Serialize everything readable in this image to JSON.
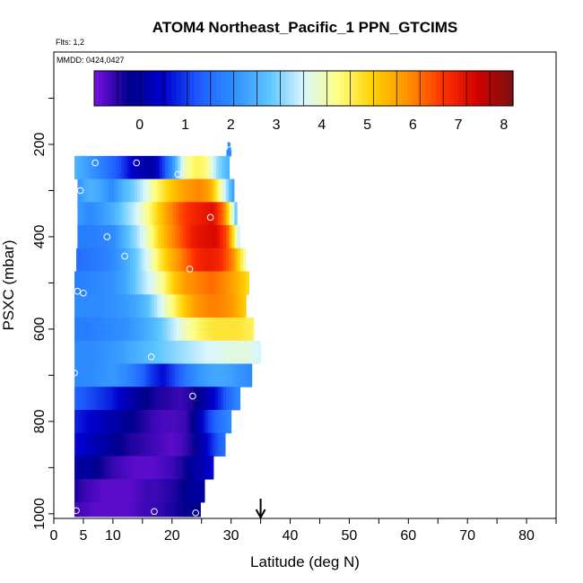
{
  "chart_data": {
    "type": "heatmap",
    "title": "ATOM4 Northeast_Pacific_1 PPN_GTCIMS",
    "flights_note": "Flts: 1,2",
    "dates_note": "MMDD: 0424,0427",
    "xlabel": "Latitude (deg N)",
    "ylabel": "PSXC (mbar)",
    "xlim": [
      0,
      85
    ],
    "ylim": [
      1010,
      0
    ],
    "x_ticks": [
      0,
      5,
      10,
      20,
      30,
      40,
      50,
      60,
      70,
      80
    ],
    "y_ticks": [
      200,
      400,
      600,
      800,
      1000
    ],
    "colorbar": {
      "min": -1,
      "max": 8.2,
      "ticks": [
        0,
        1,
        2,
        3,
        4,
        5,
        6,
        7,
        8
      ],
      "colors": [
        "#7a10e0",
        "#00008b",
        "#0000cd",
        "#1e5cff",
        "#2f8fff",
        "#5cc4ff",
        "#d8f6ff",
        "#ffff80",
        "#ffd000",
        "#ff9000",
        "#ff3000",
        "#d00000",
        "#7a1010"
      ]
    },
    "arrow_x": 35,
    "rows": [
      {
        "p": 200,
        "x0": 29.4,
        "x1": 29.9,
        "vals": [
          2.0
        ]
      },
      {
        "p": 225,
        "x0": 29.2,
        "x1": 30.0,
        "vals": [
          2.0
        ]
      },
      {
        "p": 250,
        "x0": 3.5,
        "x1": 29.7,
        "vals": [
          2.6,
          2.3,
          2.0,
          1.6,
          1.2,
          0.6,
          0.2,
          0.0,
          1.0,
          2.3,
          4.0,
          4.6,
          4.4,
          3.2,
          2.6
        ]
      },
      {
        "p": 300,
        "x0": 4.0,
        "x1": 30.5,
        "vals": [
          2.2,
          2.6,
          2.4,
          2.0,
          2.6,
          3.0,
          3.6,
          4.4,
          5.0,
          5.5,
          5.8,
          6.0,
          5.6,
          4.0,
          2.4
        ]
      },
      {
        "p": 350,
        "x0": 4.0,
        "x1": 31.0,
        "vals": [
          2.2,
          2.0,
          2.2,
          2.5,
          3.0,
          3.5,
          4.2,
          5.0,
          5.8,
          6.4,
          6.8,
          7.0,
          7.2,
          6.0,
          3.0
        ]
      },
      {
        "p": 400,
        "x0": 4.0,
        "x1": 31.5,
        "vals": [
          1.8,
          1.8,
          1.9,
          2.0,
          2.6,
          3.2,
          4.0,
          5.0,
          5.8,
          6.4,
          7.0,
          7.2,
          7.3,
          6.4,
          3.6
        ]
      },
      {
        "p": 450,
        "x0": 3.8,
        "x1": 32.5,
        "vals": [
          1.6,
          1.7,
          1.8,
          2.0,
          2.4,
          3.0,
          3.8,
          4.8,
          5.6,
          6.2,
          6.8,
          7.0,
          6.8,
          6.0,
          4.2
        ]
      },
      {
        "p": 500,
        "x0": 3.5,
        "x1": 33.0,
        "vals": [
          1.8,
          1.9,
          2.0,
          2.1,
          2.4,
          3.0,
          3.6,
          4.2,
          5.2,
          5.8,
          6.0,
          6.2,
          6.0,
          5.6,
          5.0
        ]
      },
      {
        "p": 550,
        "x0": 3.5,
        "x1": 32.5,
        "vals": [
          2.0,
          2.0,
          2.0,
          2.1,
          2.2,
          2.4,
          2.8,
          3.6,
          4.4,
          5.2,
          5.8,
          6.0,
          6.0,
          5.8,
          5.2
        ]
      },
      {
        "p": 600,
        "x0": 3.5,
        "x1": 33.8,
        "vals": [
          1.8,
          1.8,
          1.9,
          2.0,
          2.1,
          2.3,
          2.6,
          3.0,
          3.6,
          4.2,
          4.6,
          4.8,
          4.8,
          4.8,
          4.6
        ]
      },
      {
        "p": 650,
        "x0": 3.5,
        "x1": 35.0,
        "vals": [
          2.0,
          2.0,
          2.1,
          2.2,
          2.4,
          2.6,
          2.8,
          3.0,
          3.2,
          3.4,
          3.6,
          3.7,
          3.8,
          3.8,
          3.6
        ]
      },
      {
        "p": 700,
        "x0": 3.5,
        "x1": 33.5,
        "vals": [
          2.0,
          2.0,
          2.1,
          2.2,
          2.0,
          1.6,
          1.0,
          0.6,
          1.2,
          1.8,
          2.2,
          2.4,
          2.4,
          2.2,
          2.0
        ]
      },
      {
        "p": 750,
        "x0": 3.5,
        "x1": 31.5,
        "vals": [
          1.4,
          1.2,
          1.0,
          0.8,
          0.4,
          0.0,
          -0.2,
          -0.4,
          -0.5,
          -0.6,
          -0.4,
          0.0,
          0.6,
          1.4,
          2.0
        ]
      },
      {
        "p": 800,
        "x0": 3.5,
        "x1": 30.0,
        "vals": [
          0.8,
          0.6,
          0.4,
          0.2,
          0.0,
          -0.2,
          -0.4,
          -0.6,
          -0.7,
          -0.7,
          -0.6,
          0.0,
          1.0,
          1.6,
          2.0
        ]
      },
      {
        "p": 850,
        "x0": 3.5,
        "x1": 29.0,
        "vals": [
          0.6,
          0.4,
          0.2,
          0.0,
          -0.2,
          -0.4,
          -0.5,
          -0.6,
          -0.7,
          -0.8,
          -0.7,
          -0.4,
          0.2,
          1.0,
          1.6
        ]
      },
      {
        "p": 900,
        "x0": 3.5,
        "x1": 27.0,
        "vals": [
          0.0,
          0.0,
          -0.2,
          -0.4,
          -0.6,
          -0.7,
          -0.8,
          -0.8,
          -0.8,
          -0.7,
          -0.6,
          -0.4,
          0.0,
          0.2,
          0.6
        ]
      },
      {
        "p": 950,
        "x0": 3.5,
        "x1": 25.5,
        "vals": [
          -0.4,
          -0.6,
          -0.7,
          -0.8,
          -0.8,
          -0.8,
          -0.8,
          -0.7,
          -0.6,
          -0.6,
          -0.5,
          -0.4,
          -0.2,
          0.0,
          0.0
        ]
      },
      {
        "p": 1000,
        "x0": 3.5,
        "x1": 24.8,
        "vals": [
          -0.6,
          -0.7,
          -0.8,
          -0.8,
          -0.8,
          -0.8,
          -0.8,
          -0.7,
          -0.6,
          -0.6,
          -0.5,
          -0.4,
          -0.3,
          -0.2,
          -0.2
        ]
      }
    ],
    "points": [
      {
        "x": 29.5,
        "y": 200
      },
      {
        "x": 7,
        "y": 240
      },
      {
        "x": 14,
        "y": 240
      },
      {
        "x": 21,
        "y": 265
      },
      {
        "x": 4.5,
        "y": 300
      },
      {
        "x": 26.5,
        "y": 358
      },
      {
        "x": 9,
        "y": 400
      },
      {
        "x": 12,
        "y": 442
      },
      {
        "x": 23,
        "y": 470
      },
      {
        "x": 4,
        "y": 518
      },
      {
        "x": 5,
        "y": 522
      },
      {
        "x": 16.5,
        "y": 660
      },
      {
        "x": 3.5,
        "y": 695
      },
      {
        "x": 23.5,
        "y": 745
      },
      {
        "x": 3.8,
        "y": 993
      },
      {
        "x": 17,
        "y": 995
      },
      {
        "x": 24,
        "y": 998
      }
    ]
  }
}
